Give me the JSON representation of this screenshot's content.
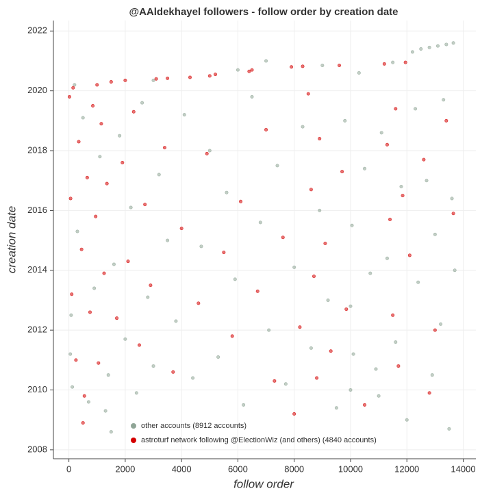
{
  "chart_data": {
    "type": "scatter",
    "title": "@AAldekhayel followers - follow order by creation date",
    "x_label": "follow order",
    "y_label": "creation date",
    "xlim": [
      -550,
      14450
    ],
    "ylim": [
      2007.7,
      2022.35
    ],
    "xticks": [
      0,
      2000,
      4000,
      6000,
      8000,
      10000,
      12000,
      14000
    ],
    "yticks": [
      2008,
      2010,
      2012,
      2014,
      2016,
      2018,
      2020,
      2022
    ],
    "grid": true,
    "legend": "lower left",
    "series": [
      {
        "name": "other accounts (8912 accounts)",
        "color": "#8fa596",
        "x": [
          50,
          80,
          120,
          300,
          500,
          700,
          900,
          1100,
          1300,
          1400,
          1500,
          1600,
          1800,
          2000,
          2200,
          2400,
          2600,
          2800,
          3000,
          3200,
          3500,
          3800,
          4100,
          4400,
          4700,
          5000,
          5300,
          5600,
          5900,
          6200,
          6500,
          6800,
          7100,
          7400,
          7700,
          8000,
          8300,
          8600,
          8900,
          9200,
          9500,
          9800,
          10000,
          10000,
          10050,
          10100,
          10300,
          10500,
          10700,
          10900,
          11000,
          11100,
          11300,
          11600,
          11800,
          12000,
          12200,
          12300,
          12400,
          12500,
          12700,
          12800,
          12900,
          13000,
          13100,
          13200,
          13300,
          13400,
          13500,
          13600,
          13650,
          13700,
          200,
          3000,
          6000,
          9000,
          11500,
          7000
        ],
        "values": [
          2011.2,
          2012.5,
          2010.1,
          2015.3,
          2019.1,
          2009.6,
          2013.4,
          2017.8,
          2009.3,
          2010.5,
          2008.6,
          2014.2,
          2018.5,
          2011.7,
          2016.1,
          2009.9,
          2019.6,
          2013.1,
          2010.8,
          2017.2,
          2015.0,
          2012.3,
          2019.2,
          2010.4,
          2014.8,
          2018.0,
          2011.1,
          2016.6,
          2013.7,
          2009.5,
          2019.8,
          2015.6,
          2012.0,
          2017.5,
          2010.2,
          2014.1,
          2018.8,
          2011.4,
          2016.0,
          2013.0,
          2009.4,
          2019.0,
          2010.0,
          2012.8,
          2015.5,
          2011.2,
          2020.6,
          2017.4,
          2013.9,
          2010.7,
          2009.8,
          2018.6,
          2014.4,
          2011.6,
          2016.8,
          2009.0,
          2021.3,
          2019.4,
          2013.6,
          2021.4,
          2017.0,
          2021.45,
          2010.5,
          2015.2,
          2021.5,
          2012.2,
          2019.7,
          2021.55,
          2008.7,
          2016.4,
          2021.6,
          2014.0,
          2020.2,
          2020.35,
          2020.7,
          2020.85,
          2020.95,
          2021.0
        ]
      },
      {
        "name": "astroturf network following @ElectionWiz (and others) (4840 accounts)",
        "color": "#d40000",
        "x": [
          20,
          60,
          100,
          150,
          250,
          350,
          450,
          550,
          650,
          750,
          850,
          950,
          1050,
          1150,
          1250,
          1350,
          1500,
          1700,
          1900,
          2100,
          2300,
          2500,
          2700,
          2900,
          3100,
          3400,
          3700,
          4000,
          4300,
          4600,
          4900,
          5200,
          5500,
          5800,
          6100,
          6400,
          6700,
          7000,
          7300,
          7600,
          7900,
          8200,
          8500,
          8600,
          8700,
          8800,
          8900,
          9100,
          9300,
          9600,
          9700,
          9850,
          11200,
          11300,
          11400,
          11500,
          11600,
          11700,
          11850,
          11950,
          12100,
          12600,
          13000,
          13400,
          13650,
          500,
          8000,
          1000,
          2000,
          3500,
          5000,
          6500,
          8300,
          10500,
          12800
        ],
        "values": [
          2019.8,
          2016.4,
          2013.2,
          2020.1,
          2011.0,
          2018.3,
          2014.7,
          2009.8,
          2017.1,
          2012.6,
          2019.5,
          2015.8,
          2010.9,
          2018.9,
          2013.9,
          2016.9,
          2020.3,
          2012.4,
          2017.6,
          2014.3,
          2019.3,
          2011.5,
          2016.2,
          2013.5,
          2020.4,
          2018.1,
          2010.6,
          2015.4,
          2020.45,
          2012.9,
          2017.9,
          2020.55,
          2014.6,
          2011.8,
          2016.3,
          2020.65,
          2013.3,
          2018.7,
          2010.3,
          2015.1,
          2020.8,
          2012.1,
          2019.9,
          2016.7,
          2013.8,
          2010.4,
          2018.4,
          2014.9,
          2011.3,
          2020.85,
          2017.3,
          2012.7,
          2020.9,
          2018.2,
          2015.7,
          2012.5,
          2019.4,
          2010.8,
          2016.5,
          2020.95,
          2014.5,
          2017.7,
          2012.0,
          2019.0,
          2015.9,
          2008.9,
          2009.2,
          2020.2,
          2020.35,
          2020.42,
          2020.5,
          2020.7,
          2020.82,
          2009.5,
          2009.9
        ]
      }
    ]
  }
}
